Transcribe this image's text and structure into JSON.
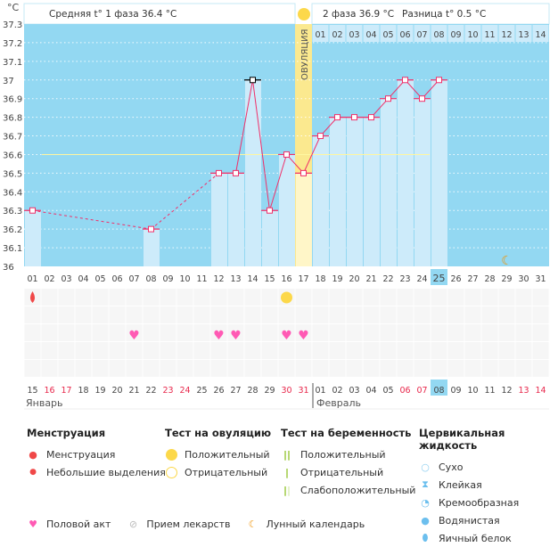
{
  "header": {
    "unit": "°C",
    "phase1_label": "Средняя t° 1 фаза 36.4 °C",
    "phase2_label": "2 фаза 36.9 °C",
    "diff_label": "Разница t° 0.5 °C",
    "ovulation_label": "ОВУЛЯЦИЯ"
  },
  "chart_data": {
    "type": "line",
    "ylim": [
      36,
      37.3
    ],
    "yticks": [
      "37.3",
      "37.2",
      "37.1",
      "37",
      "36.9",
      "36.8",
      "36.7",
      "36.6",
      "36.5",
      "36.4",
      "36.3",
      "36.2",
      "36.1",
      "36"
    ],
    "cycle_days": [
      "01",
      "02",
      "03",
      "04",
      "05",
      "06",
      "07",
      "08",
      "09",
      "10",
      "11",
      "12",
      "13",
      "14",
      "15",
      "16",
      "17",
      "18",
      "19",
      "20",
      "21",
      "22",
      "23",
      "24",
      "25",
      "26",
      "27",
      "28",
      "29",
      "30",
      "31"
    ],
    "temps": {
      "1": 36.3,
      "8": 36.2,
      "12": 36.5,
      "13": 36.5,
      "14": 37.0,
      "15": 36.3,
      "16": 36.6,
      "17": 36.5,
      "18": 36.7,
      "19": 36.8,
      "20": 36.8,
      "21": 36.8,
      "22": 36.9,
      "23": 37.0,
      "24": 36.9,
      "25": 37.0
    },
    "excluded_day": 14,
    "coverline": 36.6,
    "ovulation_day": 17,
    "current_day": 25,
    "luteal_days": [
      "01",
      "02",
      "03",
      "04",
      "05",
      "06",
      "07",
      "08",
      "09",
      "10",
      "11",
      "12",
      "13",
      "14"
    ],
    "dates": [
      "15",
      "16",
      "17",
      "18",
      "19",
      "20",
      "21",
      "22",
      "23",
      "24",
      "25",
      "26",
      "27",
      "28",
      "29",
      "30",
      "31",
      "01",
      "02",
      "03",
      "04",
      "05",
      "06",
      "07",
      "08",
      "09",
      "10",
      "11",
      "12",
      "13",
      "14"
    ],
    "weekend_dates": [
      "16",
      "17",
      "23",
      "24",
      "30",
      "31",
      "06",
      "07",
      "13",
      "14"
    ],
    "months": [
      "Январь",
      "Февраль"
    ],
    "events": {
      "menstruation": [
        1
      ],
      "ovulation_test_positive": [
        16
      ],
      "intercourse": [
        7,
        12,
        13,
        16,
        17
      ],
      "lunar": [
        29
      ]
    },
    "colors": {
      "plot_bg": "#93d8f2",
      "bar": "#cdebfa",
      "line": "#f0306a",
      "ovulation": "#fbe98f",
      "coverline": "#fff6a0",
      "heart": "#ff5ab4",
      "drop": "#f04848",
      "sun": "#fcd84a",
      "moon": "#f0950a"
    }
  },
  "legend": {
    "menstruation": {
      "title": "Менструация",
      "items": [
        "Менструация",
        "Небольшие выделения"
      ]
    },
    "ovulation_test": {
      "title": "Тест на овуляцию",
      "items": [
        "Положительный",
        "Отрицательный"
      ]
    },
    "pregnancy_test": {
      "title": "Тест на беременность",
      "items": [
        "Положительный",
        "Отрицательный",
        "Слабоположительный"
      ]
    },
    "cervical": {
      "title": "Цервикальная жидкость",
      "items": [
        "Сухо",
        "Клейкая",
        "Кремообразная",
        "Водянистая",
        "Яичный белок"
      ]
    },
    "bottom": [
      "Половой акт",
      "Прием лекарств",
      "Лунный календарь"
    ]
  }
}
